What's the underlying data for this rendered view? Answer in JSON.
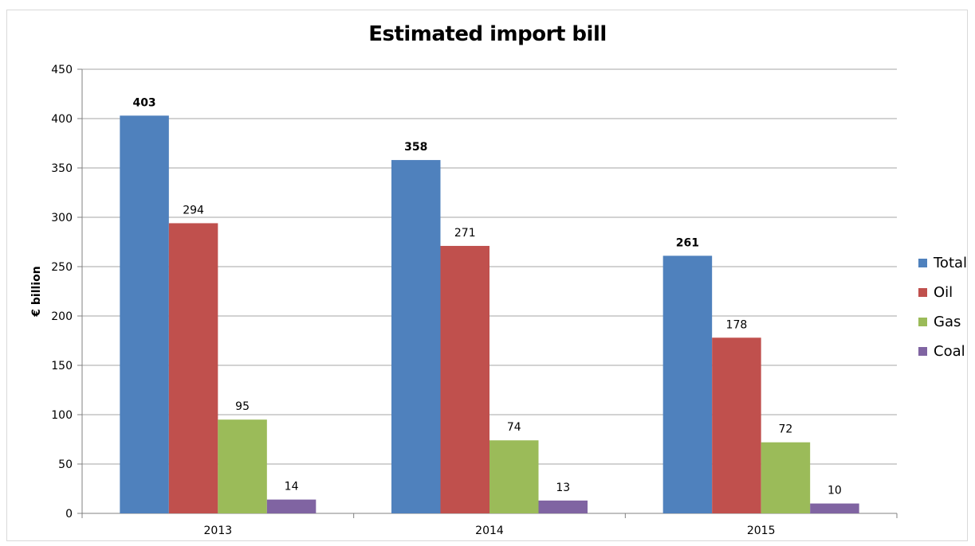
{
  "chart_data": {
    "type": "bar",
    "title": "Estimated import bill",
    "ylabel": "€ billion",
    "xlabel": "",
    "ylim": [
      0,
      450
    ],
    "yticks": [
      0,
      50,
      100,
      150,
      200,
      250,
      300,
      350,
      400,
      450
    ],
    "categories": [
      "2013",
      "2014",
      "2015"
    ],
    "series": [
      {
        "name": "Total",
        "color": "#4f81bd",
        "values": [
          403,
          358,
          261
        ],
        "label_bold": true
      },
      {
        "name": "Oil",
        "color": "#c0504d",
        "values": [
          294,
          271,
          178
        ],
        "label_bold": false
      },
      {
        "name": "Gas",
        "color": "#9bbb59",
        "values": [
          95,
          74,
          72
        ],
        "label_bold": false
      },
      {
        "name": "Coal",
        "color": "#8064a2",
        "values": [
          14,
          13,
          10
        ],
        "label_bold": false
      }
    ],
    "grid": true,
    "legend": "right"
  }
}
